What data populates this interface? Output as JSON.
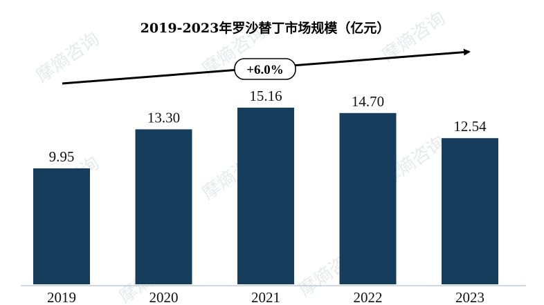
{
  "chart_data": {
    "type": "bar",
    "title": "2019-2023年罗沙替丁市场规模（亿元）",
    "categories": [
      "2019",
      "2020",
      "2021",
      "2022",
      "2023"
    ],
    "values": [
      9.95,
      13.3,
      15.16,
      14.7,
      12.54
    ],
    "value_labels": [
      "9.95",
      "13.30",
      "15.16",
      "14.70",
      "12.54"
    ],
    "xlabel": "",
    "ylabel": "",
    "ylim": [
      0,
      18
    ],
    "bar_color": "#163d5c",
    "grid": false,
    "legend": "none",
    "annotation": {
      "label": "+6.0%",
      "style": "rounded-box on upward arrow"
    }
  },
  "watermark": {
    "text": "摩熵咨询"
  }
}
